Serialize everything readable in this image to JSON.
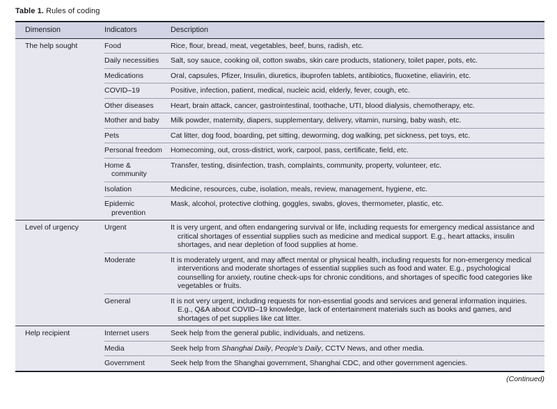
{
  "title": {
    "label": "Table 1.",
    "text": "Rules of coding"
  },
  "continued": "(Continued)",
  "colors": {
    "header-bg": "#d2d3e4",
    "body-bg": "#e7e7f0",
    "rule-dark": "#23232e",
    "rule-mid": "#3c3c48",
    "rule-gray": "#9b9bad"
  },
  "table": {
    "columns": [
      "Dimension",
      "Indicators",
      "Description"
    ],
    "sections": [
      {
        "dimension": "The help sought",
        "rows": [
          {
            "indicator": "Food",
            "description": "Rice, flour, bread, meat, vegetables, beef, buns, radish, etc."
          },
          {
            "indicator": "Daily necessities",
            "description": "Salt, soy sauce, cooking oil, cotton swabs, skin care products, stationery, toilet paper, pots, etc."
          },
          {
            "indicator": "Medications",
            "description": "Oral, capsules, Pfizer, Insulin, diuretics, ibuprofen tablets, antibiotics, fluoxetine, eliavirin, etc."
          },
          {
            "indicator": "COVID–19",
            "description": "Positive, infection, patient, medical, nucleic acid, elderly, fever, cough, etc."
          },
          {
            "indicator": "Other diseases",
            "description": "Heart, brain attack, cancer, gastrointestinal, toothache, UTI, blood dialysis, chemotherapy, etc."
          },
          {
            "indicator": "Mother and baby",
            "description": "Milk powder, maternity, diapers, supplementary, delivery, vitamin, nursing, baby wash, etc."
          },
          {
            "indicator": "Pets",
            "description": "Cat litter, dog food, boarding, pet sitting, deworming, dog walking, pet sickness, pet toys, etc."
          },
          {
            "indicator": "Personal freedom",
            "description": "Homecoming, out, cross-district, work, carpool, pass, certificate, field, etc."
          },
          {
            "indicator": "Home & community",
            "description": "Transfer, testing, disinfection, trash, complaints, community, property, volunteer, etc."
          },
          {
            "indicator": "Isolation",
            "description": "Medicine, resources, cube, isolation, meals, review, management, hygiene, etc."
          },
          {
            "indicator": "Epidemic prevention",
            "description": "Mask, alcohol, protective clothing, goggles, swabs, gloves, thermometer, plastic, etc."
          }
        ]
      },
      {
        "dimension": "Level of urgency",
        "rows": [
          {
            "indicator": "Urgent",
            "description": "It is very urgent, and often endangering survival or life, including requests for emergency medical assistance and critical shortages of essential supplies such as medicine and medical support. E.g., heart attacks, insulin shortages, and near depletion of food supplies at home."
          },
          {
            "indicator": "Moderate",
            "description": "It is moderately urgent, and may affect mental or physical health, including requests for non-emergency medical interventions and moderate shortages of essential supplies such as food and water. E.g., psychological counselling for anxiety, routine check-ups for chronic conditions, and shortages of specific food categories like vegetables or fruits."
          },
          {
            "indicator": "General",
            "description": "It is not very urgent, including requests for non-essential goods and services and general information inquiries. E.g., Q&A about COVID–19 knowledge, lack of entertainment materials such as books and games, and shortages of pet supplies like cat litter."
          }
        ]
      },
      {
        "dimension": "Help recipient",
        "rows": [
          {
            "indicator": "Internet users",
            "description": "Seek help from the general public, individuals, and netizens."
          },
          {
            "indicator": "Media",
            "description_parts": {
              "pre": "Seek help from ",
              "italic1": "Shanghai Daily",
              "sep1": ", ",
              "italic2": "People's Daily",
              "post": ", CCTV News, and other media."
            }
          },
          {
            "indicator": "Government",
            "description": "Seek help from the Shanghai government, Shanghai CDC, and other government agencies."
          }
        ]
      }
    ]
  }
}
